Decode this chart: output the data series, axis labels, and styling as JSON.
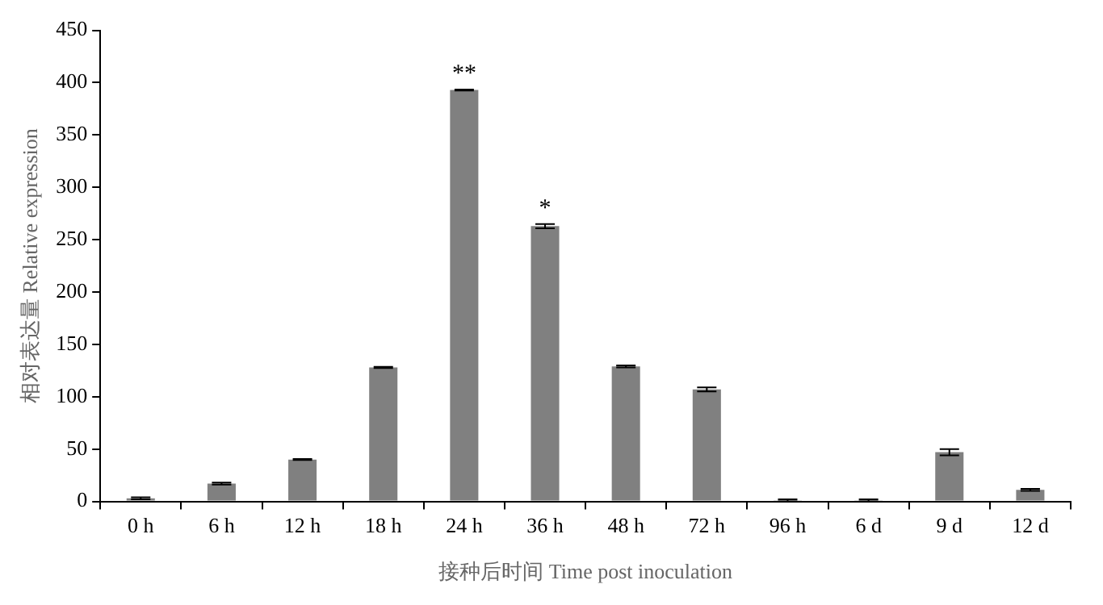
{
  "chart_data": {
    "type": "bar",
    "xlabel": "接种后时间 Time post inoculation",
    "ylabel": "相对表达量 Relative expression",
    "categories": [
      "0 h",
      "6 h",
      "12 h",
      "18 h",
      "24 h",
      "36 h",
      "48 h",
      "72 h",
      "96 h",
      "6 d",
      "9 d",
      "12 d"
    ],
    "values": [
      3,
      17,
      40,
      128,
      393,
      263,
      129,
      107,
      1,
      1,
      47,
      11
    ],
    "errors": [
      1,
      1,
      0.5,
      0.5,
      0.5,
      2,
      1,
      2,
      1,
      1,
      3,
      1
    ],
    "color": "#808080",
    "ylim": [
      0,
      450
    ],
    "yticks": [
      0,
      50,
      100,
      150,
      200,
      250,
      300,
      350,
      400,
      450
    ],
    "grid": false,
    "annotations": [
      {
        "text": "**",
        "x": "24 h",
        "y": 393
      },
      {
        "text": "*",
        "x": "36 h",
        "y": 263
      }
    ]
  }
}
